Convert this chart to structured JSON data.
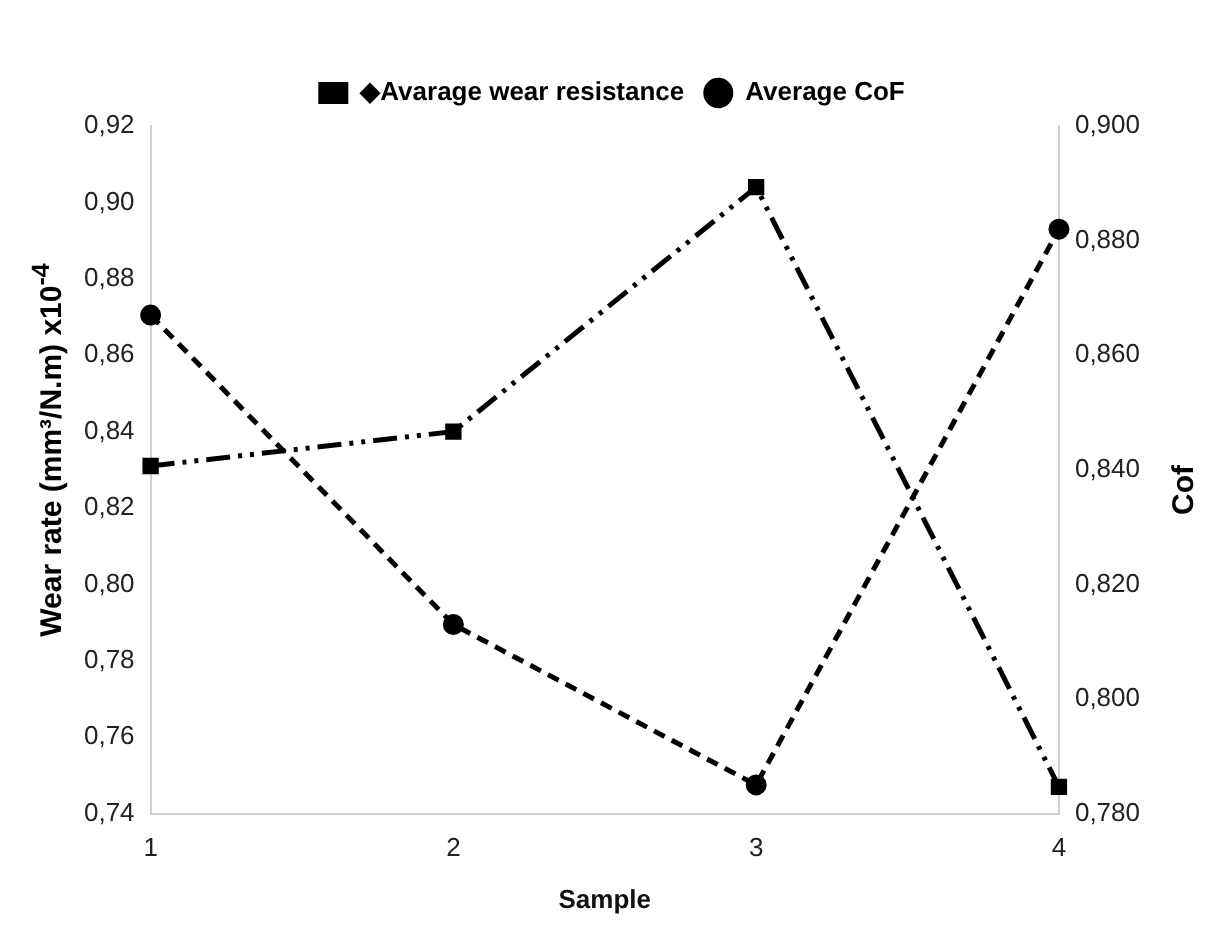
{
  "chart_data": {
    "type": "line",
    "xlabel": "Sample",
    "ylabel": "Wear rate (mm³/N.m) x10$^{-4}$",
    "y2label": "Cof",
    "categories": [
      "1",
      "2",
      "3",
      "4"
    ],
    "series": [
      {
        "name": "◆Avarage wear resistance",
        "color": "#000000",
        "values": [
          0.831,
          0.84,
          0.904,
          0.747
        ],
        "marker": "square",
        "line_style": "dashdot"
      },
      {
        "name": "Average CoF",
        "color": "#000000",
        "values": [
          0.867,
          0.813,
          0.785,
          0.882
        ],
        "marker": "circle",
        "line_style": "dashed",
        "axis": "y2"
      }
    ],
    "ylim": [
      0.74,
      0.92
    ],
    "yticks": [
      {
        "value": 0.74,
        "label": "0,74"
      },
      {
        "value": 0.76,
        "label": "0,76"
      },
      {
        "value": 0.78,
        "label": "0,78"
      },
      {
        "value": 0.8,
        "label": "0,80"
      },
      {
        "value": 0.82,
        "label": "0,82"
      },
      {
        "value": 0.84,
        "label": "0,84"
      },
      {
        "value": 0.86,
        "label": "0,86"
      },
      {
        "value": 0.88,
        "label": "0,88"
      },
      {
        "value": 0.9,
        "label": "0,90"
      },
      {
        "value": 0.92,
        "label": "0,92"
      }
    ],
    "y2lim": [
      0.78,
      0.9
    ],
    "y2ticks": [
      {
        "value": 0.78,
        "label": "0,780"
      },
      {
        "value": 0.8,
        "label": "0,800"
      },
      {
        "value": 0.82,
        "label": "0,820"
      },
      {
        "value": 0.84,
        "label": "0,840"
      },
      {
        "value": 0.86,
        "label": "0,860"
      },
      {
        "value": 0.88,
        "label": "0,880"
      },
      {
        "value": 0.9,
        "label": "0,900"
      }
    ],
    "grid": false,
    "legend": "top"
  }
}
